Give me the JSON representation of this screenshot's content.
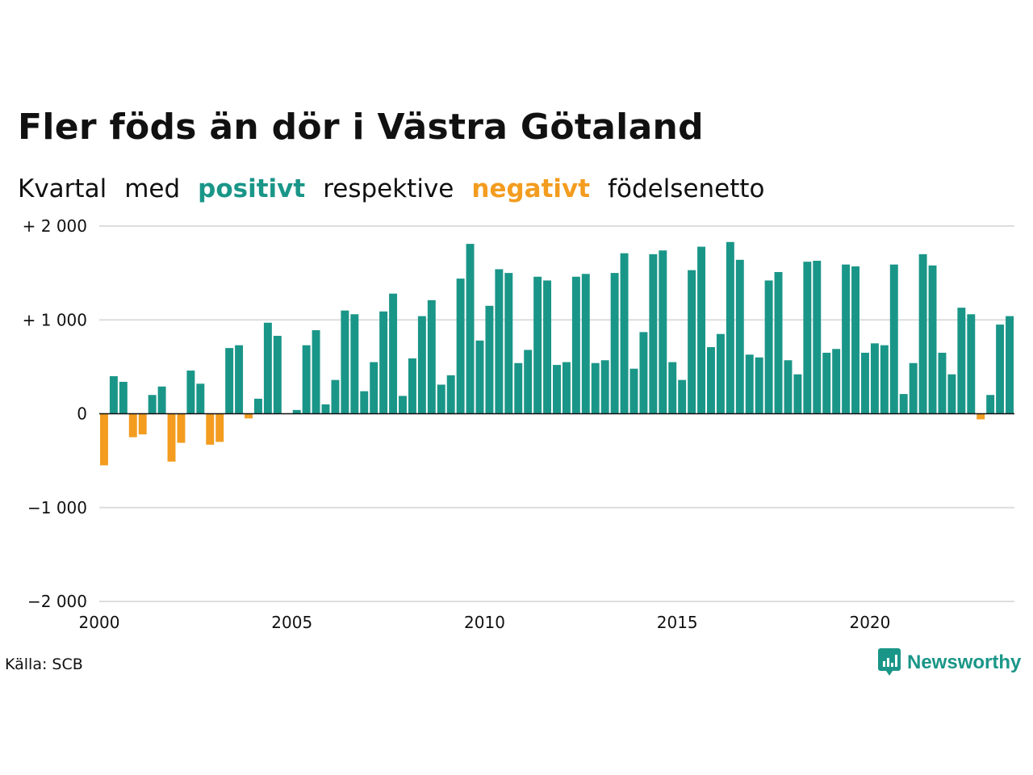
{
  "chart_data": {
    "type": "bar",
    "title": "Fler föds än dör i Västra Götaland",
    "subtitle_parts": [
      "Kvartal",
      "med",
      "positivt",
      "respektive",
      "negativt",
      "födelsenetto"
    ],
    "colors": {
      "positive": "#1a9688",
      "negative": "#f39c1f",
      "grid": "#dddddd",
      "axis": "#111111"
    },
    "y_ticks": [
      {
        "value": 2000,
        "label": "+ 2 000"
      },
      {
        "value": 1000,
        "label": "+ 1 000"
      },
      {
        "value": 0,
        "label": "0"
      },
      {
        "value": -1000,
        "label": "−1 000"
      },
      {
        "value": -2000,
        "label": "−2 000"
      }
    ],
    "x_ticks": [
      {
        "value": 2000,
        "label": "2000"
      },
      {
        "value": 2005,
        "label": "2005"
      },
      {
        "value": 2010,
        "label": "2010"
      },
      {
        "value": 2015,
        "label": "2015"
      },
      {
        "value": 2020,
        "label": "2020"
      }
    ],
    "ylim": [
      -2000,
      2000
    ],
    "xlim": [
      2000,
      2023.75
    ],
    "start_year": 2000,
    "values": [
      -550,
      400,
      340,
      -250,
      -220,
      200,
      290,
      -510,
      -310,
      460,
      320,
      -330,
      -300,
      700,
      730,
      -50,
      160,
      970,
      830,
      0,
      40,
      730,
      890,
      100,
      360,
      1100,
      1060,
      240,
      550,
      1090,
      1280,
      190,
      590,
      1040,
      1210,
      310,
      410,
      1440,
      1810,
      780,
      1150,
      1540,
      1500,
      540,
      680,
      1460,
      1420,
      520,
      550,
      1460,
      1490,
      540,
      570,
      1500,
      1710,
      480,
      870,
      1700,
      1740,
      550,
      360,
      1530,
      1780,
      710,
      850,
      1830,
      1640,
      630,
      600,
      1420,
      1510,
      570,
      420,
      1620,
      1630,
      650,
      690,
      1590,
      1570,
      650,
      750,
      730,
      1590,
      210,
      540,
      1700,
      1580,
      650,
      420,
      1130,
      1060,
      -60,
      200,
      950,
      1040
    ]
  },
  "footer": {
    "source": "Källa: SCB",
    "brand": "Newsworthy"
  }
}
